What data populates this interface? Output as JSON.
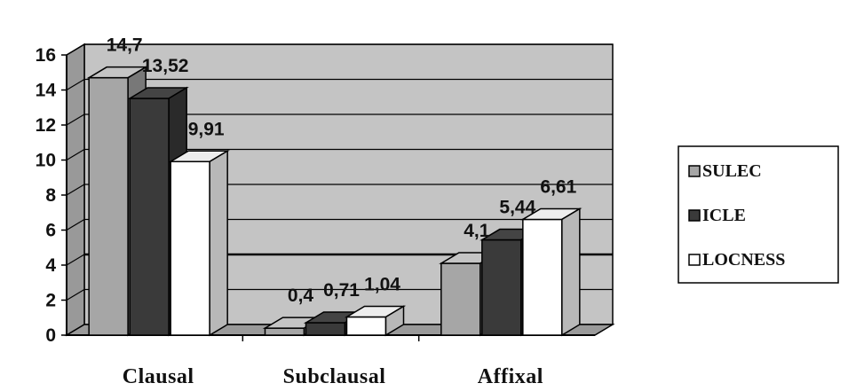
{
  "chart_data": {
    "type": "bar",
    "categories": [
      "Clausal",
      "Subclausal",
      "Affixal"
    ],
    "series": [
      {
        "name": "SULEC",
        "values": [
          14.7,
          0.4,
          4.1
        ],
        "labels": [
          "14,7",
          "0,4",
          "4,1"
        ],
        "color": "#a6a6a6"
      },
      {
        "name": "ICLE",
        "values": [
          13.52,
          0.71,
          5.44
        ],
        "labels": [
          "13,52",
          "0,71",
          "5,44"
        ],
        "color": "#3a3a3a"
      },
      {
        "name": "LOCNESS",
        "values": [
          9.91,
          1.04,
          6.61
        ],
        "labels": [
          "9,91",
          "1,04",
          "6,61"
        ],
        "color": "#ffffff"
      }
    ],
    "yticks": [
      "0",
      "2",
      "4",
      "6",
      "8",
      "10",
      "12",
      "14",
      "16"
    ],
    "ylim": [
      0,
      16
    ],
    "grid": true,
    "three_d": true,
    "background_color": "#c4c4c4",
    "legend_position": "right"
  }
}
